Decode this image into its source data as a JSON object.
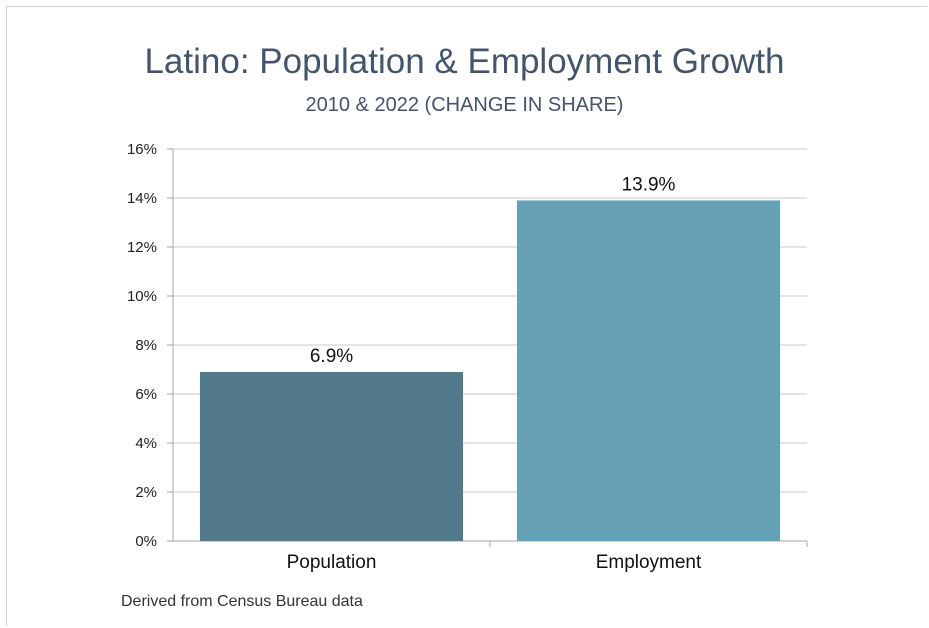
{
  "chart_data": {
    "type": "bar",
    "title": "Latino: Population & Employment Growth",
    "subtitle": "2010 & 2022 (CHANGE IN SHARE)",
    "categories": [
      "Population",
      "Employment"
    ],
    "values": [
      6.9,
      13.9
    ],
    "data_labels": [
      "6.9%",
      "13.9%"
    ],
    "bar_colors": [
      "#537a8b",
      "#66a0b7"
    ],
    "ylim": [
      0,
      16
    ],
    "yticks": [
      0,
      2,
      4,
      6,
      8,
      10,
      12,
      14,
      16
    ],
    "ytick_labels": [
      "0%",
      "2%",
      "4%",
      "6%",
      "8%",
      "10%",
      "12%",
      "14%",
      "16%"
    ],
    "xlabel": "",
    "ylabel": "",
    "grid": true,
    "legend": "none"
  },
  "footer": {
    "source": "Derived from Census Bureau data"
  },
  "colors": {
    "title": "#44546a",
    "grid": "#c8c8c8",
    "axis": "#a6a6a6"
  }
}
